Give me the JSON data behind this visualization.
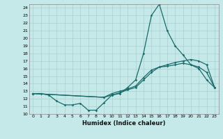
{
  "xlabel": "Humidex (Indice chaleur)",
  "bg_color": "#c5e8e8",
  "grid_color": "#aacece",
  "line_color": "#1a6b6b",
  "xlim": [
    -0.5,
    23.5
  ],
  "ylim": [
    10,
    24.5
  ],
  "yticks": [
    10,
    11,
    12,
    13,
    14,
    15,
    16,
    17,
    18,
    19,
    20,
    21,
    22,
    23,
    24
  ],
  "xticks": [
    0,
    1,
    2,
    3,
    4,
    5,
    6,
    7,
    8,
    9,
    10,
    11,
    12,
    13,
    14,
    15,
    16,
    17,
    18,
    19,
    20,
    21,
    22,
    23
  ],
  "line1_x": [
    0,
    1,
    2,
    3,
    4,
    5,
    6,
    7,
    8,
    9,
    10,
    11,
    12,
    13,
    14,
    15,
    16,
    17,
    18,
    19,
    20,
    21,
    22,
    23
  ],
  "line1_y": [
    12.7,
    12.7,
    12.5,
    11.7,
    11.2,
    11.2,
    11.4,
    10.5,
    10.5,
    11.5,
    12.5,
    12.7,
    13.5,
    14.5,
    18.0,
    23.0,
    24.5,
    21.0,
    19.0,
    17.8,
    16.5,
    16.0,
    14.5,
    13.5
  ],
  "line2_x": [
    0,
    9,
    10,
    11,
    12,
    13,
    14,
    15,
    16,
    17,
    18,
    19,
    20,
    21,
    22,
    23
  ],
  "line2_y": [
    12.7,
    12.2,
    12.5,
    12.8,
    13.2,
    13.5,
    14.5,
    15.5,
    16.2,
    16.5,
    16.8,
    17.0,
    17.2,
    17.0,
    16.5,
    13.5
  ],
  "line3_x": [
    0,
    9,
    10,
    11,
    12,
    13,
    14,
    15,
    16,
    17,
    18,
    19,
    20,
    21,
    22,
    23
  ],
  "line3_y": [
    12.7,
    12.2,
    12.7,
    13.0,
    13.3,
    13.7,
    14.8,
    15.8,
    16.2,
    16.3,
    16.5,
    16.7,
    16.5,
    16.2,
    15.5,
    13.5
  ]
}
